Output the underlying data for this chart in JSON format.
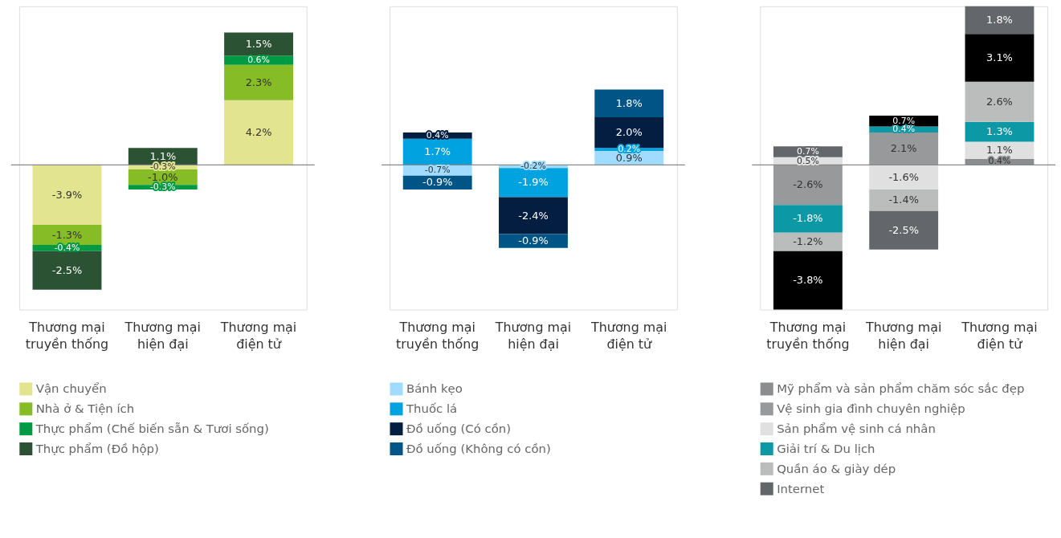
{
  "chart_data": [
    {
      "type": "bar",
      "stacked": true,
      "legend": "bottom",
      "categories": [
        "Thương mại truyền thống",
        "Thương mại hiện đại",
        "Thương mại điện tử"
      ],
      "series": [
        {
          "name": "Vận chuyển",
          "color": "#e3e48f",
          "values": [
            -3.9,
            -0.3,
            4.2
          ],
          "value_labels": [
            "-3.9%",
            "-0.3%",
            "4.2%"
          ]
        },
        {
          "name": "Nhà ở & Tiện ích",
          "color": "#86bc25",
          "values": [
            -1.3,
            -1.0,
            2.3
          ],
          "value_labels": [
            "-1.3%",
            "-1.0%",
            "2.3%"
          ]
        },
        {
          "name": "Thực phẩm (Chế biến sẵn & Tươi sống)",
          "color": "#009a44",
          "values": [
            -0.4,
            -0.3,
            0.6
          ],
          "value_labels": [
            "-0.4%",
            "-0.3%",
            "0.6%"
          ]
        },
        {
          "name": "Thực phẩm (Đồ hộp)",
          "color": "#2c5234",
          "values": [
            -2.5,
            1.1,
            1.5
          ],
          "value_labels": [
            "-2.5%",
            "1.1%",
            "1.5%"
          ]
        }
      ]
    },
    {
      "type": "bar",
      "stacked": true,
      "legend": "bottom",
      "categories": [
        "Thương mại truyền thống",
        "Thương mại hiện đại",
        "Thương mại điện tử"
      ],
      "series": [
        {
          "name": "Bánh kẹo",
          "color": "#a0dcff",
          "values": [
            -0.7,
            -0.2,
            0.9
          ],
          "value_labels": [
            "-0.7%",
            "-0.2%",
            "0.9%"
          ]
        },
        {
          "name": "Thuốc lá",
          "color": "#00a3e0",
          "values": [
            1.7,
            -1.9,
            0.2
          ],
          "value_labels": [
            "1.7%",
            "-1.9%",
            "0.2%"
          ]
        },
        {
          "name": "Đồ uống (Có cồn)",
          "color": "#041e42",
          "values": [
            0.4,
            -2.4,
            2.0
          ],
          "value_labels": [
            "0.4%",
            "-2.4%",
            "2.0%"
          ]
        },
        {
          "name": "Đồ uống (Không có cồn)",
          "color": "#005587",
          "values": [
            -0.9,
            -0.9,
            1.8
          ],
          "value_labels": [
            "-0.9%",
            "-0.9%",
            "1.8%"
          ]
        }
      ]
    },
    {
      "type": "bar",
      "stacked": true,
      "legend": "bottom",
      "categories": [
        "Thương mại truyền thống",
        "Thương mại hiện đại",
        "Thương mại điện tử"
      ],
      "series": [
        {
          "name": "Mỹ phẩm và sản phẩm chăm sóc sắc đẹp",
          "color": "#8c8d8f",
          "values": [
            null,
            null,
            0.4
          ],
          "value_labels": [
            null,
            null,
            "0.4%"
          ]
        },
        {
          "name": "Vệ sinh gia đình chuyên nghiệp",
          "color": "#97999b",
          "values": [
            -2.6,
            2.1,
            null
          ],
          "value_labels": [
            "-2.6%",
            "2.1%",
            null
          ]
        },
        {
          "name": "Sản phẩm vệ sinh cá nhân",
          "color": "#e0e0e0",
          "values": [
            0.5,
            -1.6,
            1.1
          ],
          "value_labels": [
            "0.5%",
            "-1.6%",
            "1.1%"
          ]
        },
        {
          "name": "Giải trí & Du lịch",
          "color": "#0d98a5",
          "values": [
            -1.8,
            0.4,
            1.3
          ],
          "value_labels": [
            "-1.8%",
            "0.4%",
            "1.3%"
          ]
        },
        {
          "name": "Quần áo & giày dép",
          "color": "#bbbcbc",
          "values": [
            -1.2,
            -1.4,
            2.6
          ],
          "value_labels": [
            "-1.2%",
            "-1.4%",
            "2.6%"
          ]
        },
        {
          "color": "#000000",
          "values": [
            -3.8,
            0.7,
            3.1
          ],
          "value_labels": [
            "-3.8%",
            "0.7%",
            "3.1%"
          ]
        },
        {
          "name": "Internet",
          "color": "#63666a",
          "values": [
            0.7,
            -2.5,
            1.8
          ],
          "value_labels": [
            "0.7%",
            "-2.5%",
            "1.8%"
          ]
        }
      ]
    }
  ]
}
